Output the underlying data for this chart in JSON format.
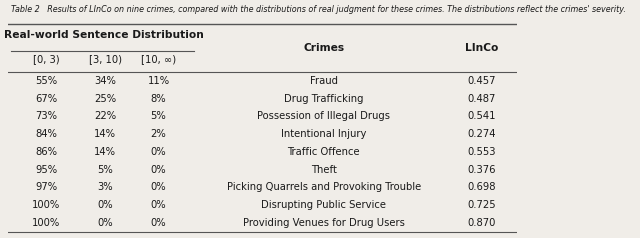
{
  "caption": "Table 2   Results of LInCo on nine crimes, compared with the distributions of real judgment for these crimes. The distributions reflect the crimes' severity.",
  "group_header": "Real-world Sentence Distribution",
  "col_headers": [
    "[0, 3)",
    "[3, 10)",
    "[10, ∞)"
  ],
  "right_headers": [
    "Crimes",
    "LInCo"
  ],
  "rows": [
    {
      "dist": [
        "55%",
        "34%",
        "11%"
      ],
      "crime": "Fraud",
      "linco": "0.457"
    },
    {
      "dist": [
        "67%",
        "25%",
        "8%"
      ],
      "crime": "Drug Trafficking",
      "linco": "0.487"
    },
    {
      "dist": [
        "73%",
        "22%",
        "5%"
      ],
      "crime": "Possession of Illegal Drugs",
      "linco": "0.541"
    },
    {
      "dist": [
        "84%",
        "14%",
        "2%"
      ],
      "crime": "Intentional Injury",
      "linco": "0.274"
    },
    {
      "dist": [
        "86%",
        "14%",
        "0%"
      ],
      "crime": "Traffic Offence",
      "linco": "0.553"
    },
    {
      "dist": [
        "95%",
        "5%",
        "0%"
      ],
      "crime": "Theft",
      "linco": "0.376"
    },
    {
      "dist": [
        "97%",
        "3%",
        "0%"
      ],
      "crime": "Picking Quarrels and Provoking Trouble",
      "linco": "0.698"
    },
    {
      "dist": [
        "100%",
        "0%",
        "0%"
      ],
      "crime": "Disrupting Public Service",
      "linco": "0.725"
    },
    {
      "dist": [
        "100%",
        "0%",
        "0%"
      ],
      "crime": "Providing Venues for Drug Users",
      "linco": "0.870"
    }
  ],
  "bg_color": "#f0ede8",
  "text_color": "#1a1a1a",
  "line_color": "#555555",
  "font_size": 7.2,
  "caption_font_size": 5.8
}
